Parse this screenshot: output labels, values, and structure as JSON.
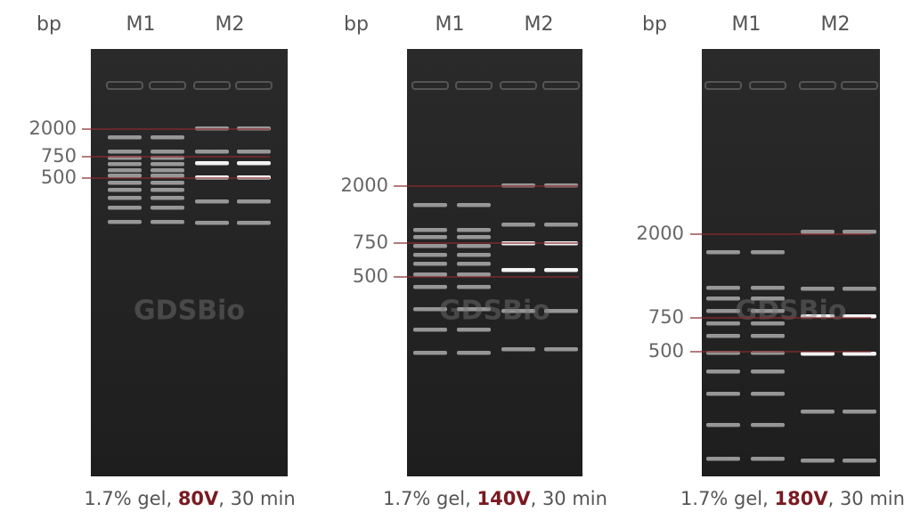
{
  "panels": [
    {
      "unit": "bp",
      "lanes": [
        "M1",
        "M2"
      ],
      "markers": [
        2000,
        750,
        500
      ],
      "watermark": "GDSBio",
      "caption": {
        "prefix": "1.7% gel, ",
        "voltage": "80V",
        "suffix": ", 30 min"
      }
    },
    {
      "unit": "bp",
      "lanes": [
        "M1",
        "M2"
      ],
      "markers": [
        2000,
        750,
        500
      ],
      "watermark": "GDSBio",
      "caption": {
        "prefix": "1.7% gel, ",
        "voltage": "140V",
        "suffix": ", 30 min"
      }
    },
    {
      "unit": "bp",
      "lanes": [
        "M1",
        "M2"
      ],
      "markers": [
        2000,
        750,
        500
      ],
      "watermark": "GDSBio",
      "caption": {
        "prefix": "1.7% gel, ",
        "voltage": "180V",
        "suffix": ", 30 min"
      }
    }
  ]
}
